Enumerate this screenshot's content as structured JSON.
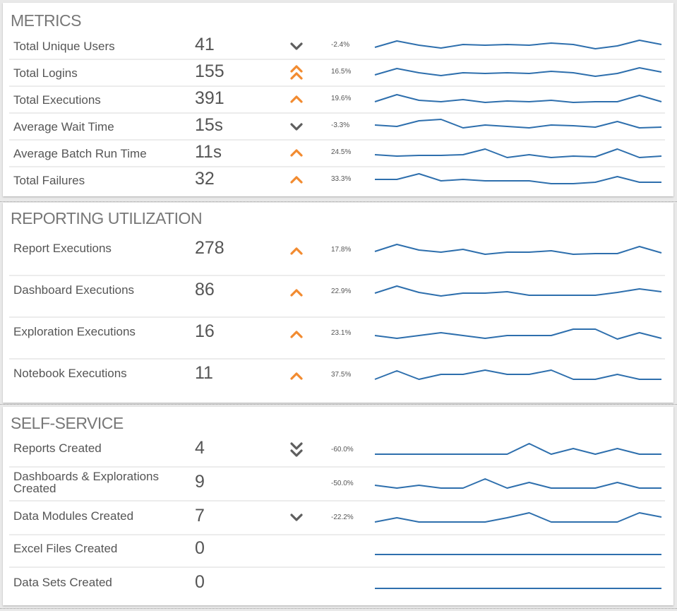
{
  "colors": {
    "spark": "#2e6fad",
    "up": "#f28b30",
    "down": "#5e5e5e",
    "title": "#777777",
    "text": "#555555"
  },
  "sections": [
    {
      "title": "METRICS",
      "rows": [
        {
          "label": "Total Unique Users",
          "value": "41",
          "unit": "",
          "trend_icon": "chevron-down-icon",
          "pct": "-2.4%",
          "spark": [
            12,
            3,
            9,
            13,
            8,
            9,
            8,
            9,
            6,
            8,
            14,
            10,
            2,
            8
          ]
        },
        {
          "label": "Total Logins",
          "value": "155",
          "unit": "",
          "trend_icon": "double-chevron-up-icon",
          "pct": "16.5%",
          "spark": [
            13,
            4,
            10,
            14,
            10,
            11,
            10,
            11,
            8,
            10,
            15,
            11,
            3,
            9
          ]
        },
        {
          "label": "Total Executions",
          "value": "391",
          "unit": "",
          "trend_icon": "chevron-up-icon",
          "pct": "19.6%",
          "spark": [
            13,
            3,
            11,
            13,
            10,
            14,
            12,
            13,
            11,
            14,
            13,
            13,
            4,
            13
          ]
        },
        {
          "label": "Average Wait Time",
          "value": "15",
          "unit": "s",
          "trend_icon": "chevron-down-icon",
          "pct": "-3.3%",
          "spark": [
            8,
            10,
            2,
            0,
            12,
            8,
            10,
            12,
            8,
            9,
            11,
            3,
            12,
            11
          ]
        },
        {
          "label": "Average Batch Run Time",
          "value": "11",
          "unit": "s",
          "trend_icon": "chevron-up-icon",
          "pct": "24.5%",
          "spark": [
            12,
            14,
            13,
            13,
            12,
            4,
            16,
            12,
            16,
            14,
            15,
            4,
            16,
            14
          ]
        },
        {
          "label": "Total Failures",
          "value": "32",
          "unit": "",
          "trend_icon": "chevron-up-icon",
          "pct": "33.3%",
          "spark": [
            9,
            9,
            1,
            11,
            9,
            11,
            11,
            11,
            15,
            15,
            13,
            5,
            13,
            13
          ]
        }
      ]
    },
    {
      "title": "REPORTING UTILIZATION",
      "rows": [
        {
          "label": "Report Executions",
          "value": "278",
          "unit": "",
          "trend_icon": "chevron-up-icon",
          "pct": "17.8%",
          "spark": [
            10,
            0,
            8,
            11,
            7,
            14,
            11,
            11,
            9,
            14,
            13,
            13,
            3,
            12
          ]
        },
        {
          "label": "Dashboard Executions",
          "value": "86",
          "unit": "",
          "trend_icon": "chevron-up-icon",
          "pct": "22.9%",
          "spark": [
            10,
            0,
            9,
            14,
            10,
            10,
            8,
            13,
            13,
            13,
            13,
            9,
            4,
            8
          ]
        },
        {
          "label": "Exploration Executions",
          "value": "16",
          "unit": "",
          "trend_icon": "chevron-up-icon",
          "pct": "23.1%",
          "spark": [
            11,
            15,
            11,
            7,
            11,
            15,
            11,
            11,
            11,
            2,
            2,
            16,
            7,
            15
          ]
        },
        {
          "label": "Notebook Executions",
          "value": "11",
          "unit": "",
          "trend_icon": "chevron-up-icon",
          "pct": "37.5%",
          "spark": [
            14,
            2,
            14,
            7,
            7,
            1,
            7,
            7,
            1,
            14,
            14,
            7,
            14,
            14
          ]
        }
      ]
    },
    {
      "title": "SELF-SERVICE",
      "rows": [
        {
          "label": "Reports Created",
          "value": "4",
          "unit": "",
          "trend_icon": "double-chevron-down-icon",
          "pct": "-60.0%",
          "spark": [
            15,
            15,
            15,
            15,
            15,
            15,
            15,
            0,
            15,
            7,
            15,
            7,
            15,
            15
          ]
        },
        {
          "label": "Dashboards & Explorations Created",
          "value": "9",
          "unit": "",
          "trend_icon": "",
          "pct": "-50.0%",
          "spark": [
            11,
            15,
            11,
            15,
            15,
            2,
            15,
            7,
            15,
            15,
            15,
            7,
            15,
            15
          ]
        },
        {
          "label": "Data Modules Created",
          "value": "7",
          "unit": "",
          "trend_icon": "chevron-down-icon",
          "pct": "-22.2%",
          "spark": [
            15,
            9,
            15,
            15,
            15,
            15,
            9,
            2,
            15,
            15,
            15,
            15,
            2,
            8
          ]
        },
        {
          "label": "Excel Files Created",
          "value": "0",
          "unit": "",
          "trend_icon": "",
          "pct": "",
          "spark": [
            15,
            15,
            15,
            15,
            15,
            15,
            15,
            15,
            15,
            15,
            15,
            15,
            15,
            15
          ]
        },
        {
          "label": "Data Sets Created",
          "value": "0",
          "unit": "",
          "trend_icon": "",
          "pct": "",
          "spark": [
            15,
            15,
            15,
            15,
            15,
            15,
            15,
            15,
            15,
            15,
            15,
            15,
            15,
            15
          ]
        }
      ]
    }
  ]
}
